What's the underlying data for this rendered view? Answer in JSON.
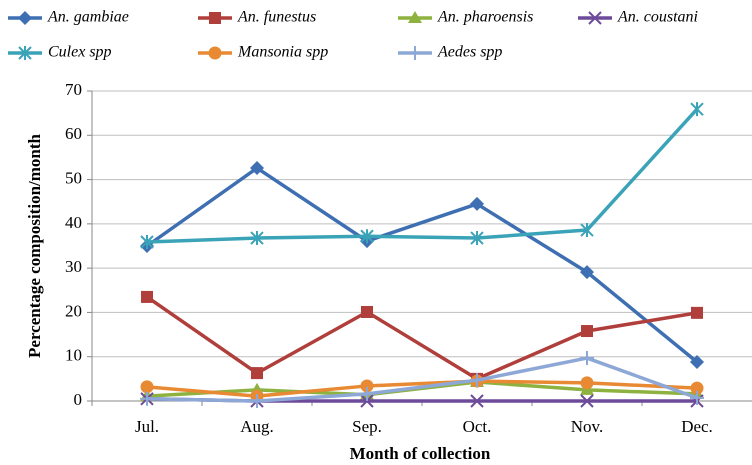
{
  "chart_data": {
    "type": "line",
    "x_label": "Month of collection",
    "y_label": "Percentage composition/month",
    "categories": [
      "Jul.",
      "Aug.",
      "Sep.",
      "Oct.",
      "Nov.",
      "Dec."
    ],
    "ylim": [
      0,
      70
    ],
    "yticks": [
      0,
      10,
      20,
      30,
      40,
      50,
      60,
      70
    ],
    "grid": true,
    "legend": "top",
    "series": [
      {
        "name": "An. gambiae",
        "color": "#3f6fb3",
        "marker": "diamond",
        "values": [
          35.0,
          52.6,
          36.1,
          44.5,
          29.1,
          8.8
        ]
      },
      {
        "name": "An. funestus",
        "color": "#b03f3c",
        "marker": "square",
        "values": [
          23.5,
          6.3,
          20.1,
          5.0,
          15.8,
          19.9
        ]
      },
      {
        "name": "An. pharoensis",
        "color": "#8db23f",
        "marker": "triangle",
        "values": [
          1.1,
          2.5,
          1.4,
          4.3,
          2.5,
          1.6
        ]
      },
      {
        "name": "An. coustani",
        "color": "#6e4b9a",
        "marker": "x",
        "values": [
          0.5,
          0,
          0,
          0,
          0,
          0
        ]
      },
      {
        "name": "Culex spp",
        "color": "#3aa3b8",
        "marker": "star",
        "values": [
          35.9,
          36.8,
          37.2,
          36.8,
          38.6,
          65.9
        ]
      },
      {
        "name": "Mansonia spp",
        "color": "#e88a34",
        "marker": "circle",
        "values": [
          3.2,
          1.1,
          3.4,
          4.5,
          4.1,
          2.9
        ]
      },
      {
        "name": "Aedes spp",
        "color": "#8da8d6",
        "marker": "plus",
        "values": [
          0.5,
          0,
          1.6,
          4.7,
          9.7,
          0.7
        ]
      }
    ]
  }
}
